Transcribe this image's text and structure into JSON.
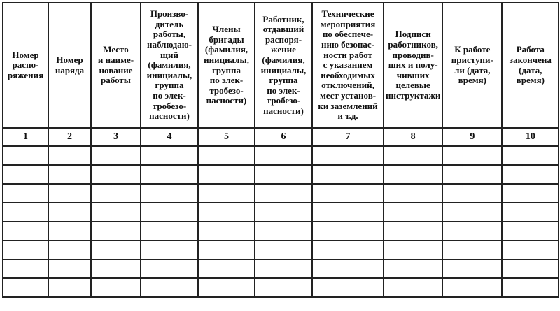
{
  "table": {
    "headers": [
      "Номер\nраспо-\nряжения",
      "Номер\nнаряда",
      "Место\nи наиме-\nнование\nработы",
      "Произво-\nдитель\nработы,\nнаблюдаю-\nщий\n(фамилия,\nинициалы,\nгруппа\nпо элек-\nтробезо-\nпасности)",
      "Члены\nбригады\n(фамилия,\nинициалы,\nгруппа\nпо элек-\nтробезо-\nпасности)",
      "Работник,\nотдавший\nраспоря-\nжение\n(фамилия,\nинициалы,\nгруппа\nпо элек-\nтробезо-\nпасности)",
      "Технические\nмероприятия\nпо обеспече-\nнию безопас-\nности работ\nс указанием\nнеобходимых\nотключений,\nмест установ-\nки заземлений\nи т.д.",
      "Подписи\nработников,\nпроводив-\nших и полу-\nчивших\nцелевые\nинструктажи",
      "К работе\nприступи-\nли (дата,\nвремя)",
      "Работа\nзакончена\n(дата,\nвремя)"
    ],
    "column_numbers": [
      "1",
      "2",
      "3",
      "4",
      "5",
      "6",
      "7",
      "8",
      "9",
      "10"
    ],
    "empty_rows": 8
  }
}
